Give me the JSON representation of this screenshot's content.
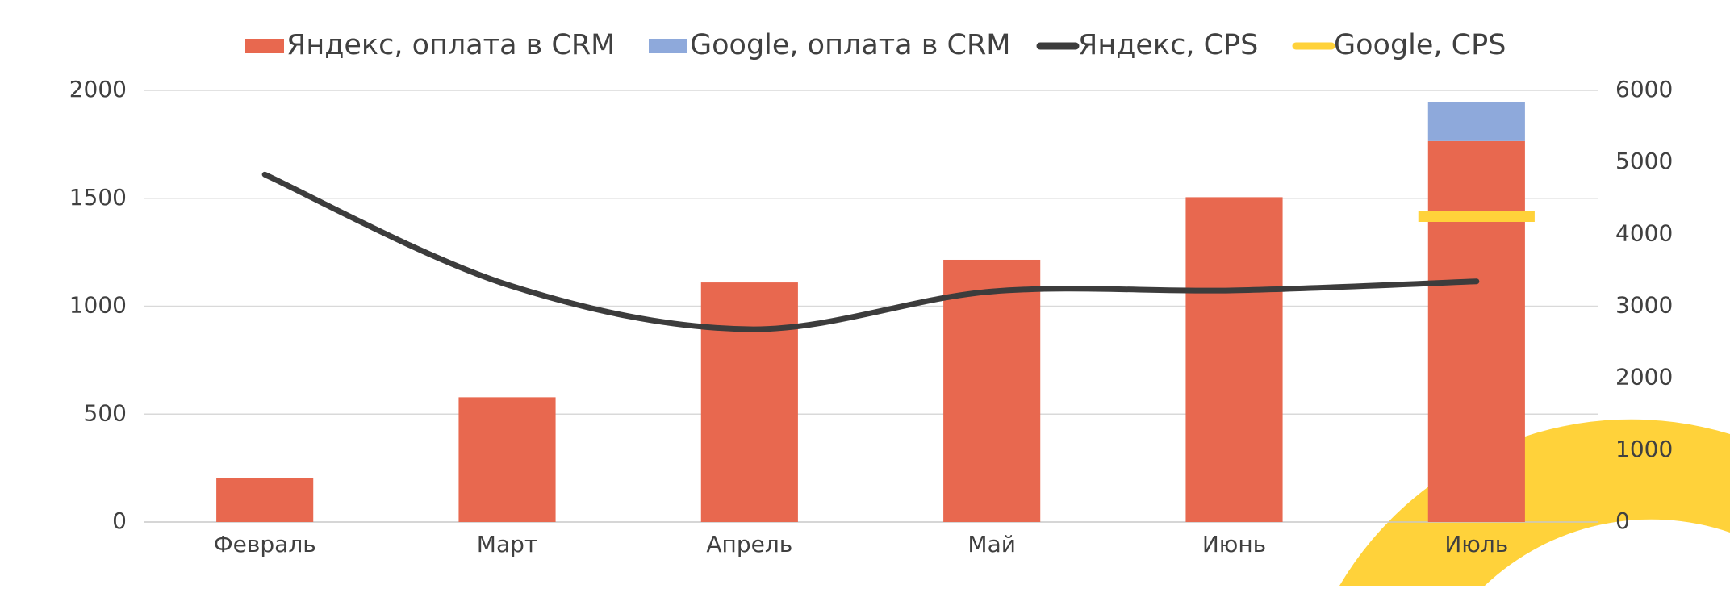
{
  "chart_data": {
    "type": "bar",
    "stacked": true,
    "categories": [
      "Февраль",
      "Март",
      "Апрель",
      "Май",
      "Июнь",
      "Июль"
    ],
    "series": [
      {
        "name": "Яндекс, оплата в CRM",
        "type": "bar",
        "color": "#E8684F",
        "values": [
          205,
          578,
          1110,
          1215,
          1505,
          1765
        ]
      },
      {
        "name": "Google, оплата в CRM",
        "type": "bar",
        "color": "#8EA9DB",
        "values": [
          null,
          null,
          null,
          null,
          null,
          180
        ]
      },
      {
        "name": "Яндекс, CPS",
        "type": "line",
        "axis": "y2",
        "smooth": true,
        "color": "#3C3C3C",
        "values": [
          4830,
          3300,
          2680,
          3205,
          3220,
          3345
        ]
      },
      {
        "name": "Google, CPS",
        "type": "line",
        "axis": "y2",
        "color": "#FFD23A",
        "values": [
          null,
          null,
          null,
          null,
          null,
          4250
        ]
      }
    ],
    "ylim": [
      0,
      2000
    ],
    "yticks": [
      0,
      500,
      1000,
      1500,
      2000
    ],
    "y2lim": [
      0,
      6000
    ],
    "y2ticks": [
      0,
      1000,
      2000,
      3000,
      4000,
      5000,
      6000
    ],
    "grid": true,
    "legend": "top"
  }
}
